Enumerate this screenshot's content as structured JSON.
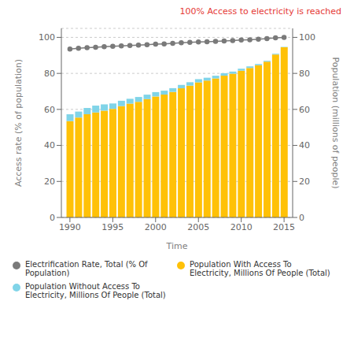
{
  "chart_data": {
    "type": "bar",
    "stacked": true,
    "grid": true,
    "annotations": [
      {
        "text": "100% Access to electricity is reached",
        "color": "#E53935"
      }
    ],
    "xlabel": "Time",
    "ylabel": "Access rate (% of population)",
    "y2label": "Population (millions of people)",
    "x": [
      1990,
      1991,
      1992,
      1993,
      1994,
      1995,
      1996,
      1997,
      1998,
      1999,
      2000,
      2001,
      2002,
      2003,
      2004,
      2005,
      2006,
      2007,
      2008,
      2009,
      2010,
      2011,
      2012,
      2013,
      2014,
      2015
    ],
    "xlim": [
      1989,
      2016
    ],
    "xticks": [
      1990,
      1995,
      2000,
      2005,
      2010,
      2015
    ],
    "ylim": [
      0,
      105
    ],
    "yticks": [
      0,
      20,
      40,
      60,
      80,
      100
    ],
    "y2lim": [
      0,
      105
    ],
    "y2ticks": [
      0,
      20,
      40,
      60,
      80,
      100
    ],
    "series": [
      {
        "name": "Electrification Rate, Total (% Of Population)",
        "type": "line",
        "axis": "y2",
        "color": "#7A7A7A",
        "marker": "circle",
        "values": [
          93.5,
          94.0,
          94.3,
          94.5,
          94.8,
          95.0,
          95.3,
          95.5,
          95.7,
          95.9,
          96.2,
          96.4,
          96.7,
          97.0,
          97.2,
          97.4,
          97.6,
          97.8,
          98.0,
          98.2,
          98.5,
          98.7,
          99.0,
          99.3,
          99.7,
          100.0
        ]
      },
      {
        "name": "Population With Access To Electricity, Millions Of People (Total)",
        "type": "bar",
        "color": "#FFC107",
        "values": [
          53.5,
          55.5,
          57.3,
          58.3,
          59.3,
          60.3,
          61.8,
          63.2,
          64.2,
          65.7,
          67.2,
          68.2,
          69.7,
          71.7,
          73.2,
          75.0,
          76.0,
          77.2,
          78.7,
          79.8,
          81.5,
          83.0,
          84.5,
          86.5,
          90.5,
          94.5
        ]
      },
      {
        "name": "Population Without Access To Electricity, Millions Of People (Total)",
        "type": "bar",
        "color": "#80D4E8",
        "values": [
          3.8,
          3.3,
          3.5,
          3.8,
          3.5,
          3.0,
          3.0,
          2.7,
          2.7,
          2.5,
          2.4,
          2.2,
          2.1,
          1.9,
          1.9,
          1.8,
          1.6,
          1.5,
          1.4,
          1.2,
          1.1,
          0.9,
          0.7,
          0.5,
          0.4,
          0.2
        ]
      }
    ]
  }
}
